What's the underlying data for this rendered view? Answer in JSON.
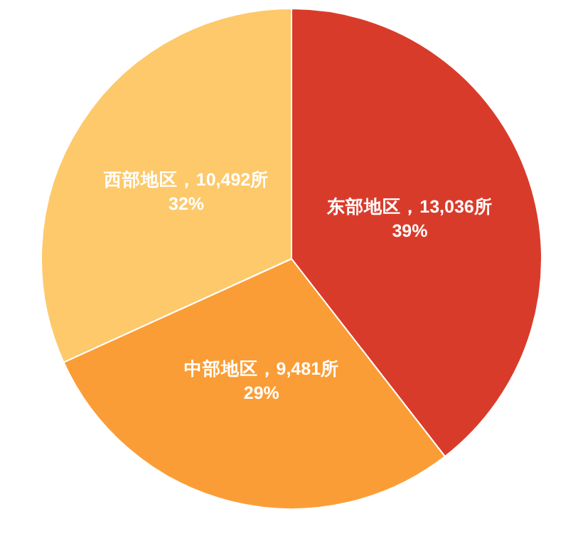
{
  "chart_data": {
    "type": "pie",
    "categories": [
      "东部地区",
      "中部地区",
      "西部地区"
    ],
    "values": [
      13036,
      9481,
      10492
    ],
    "value_labels": [
      "13,036所\n39%",
      "9,481所\n29%",
      "10,492所\n32%"
    ],
    "colors": [
      "#d93b2b",
      "#fb9d37",
      "#fdc96b"
    ]
  }
}
